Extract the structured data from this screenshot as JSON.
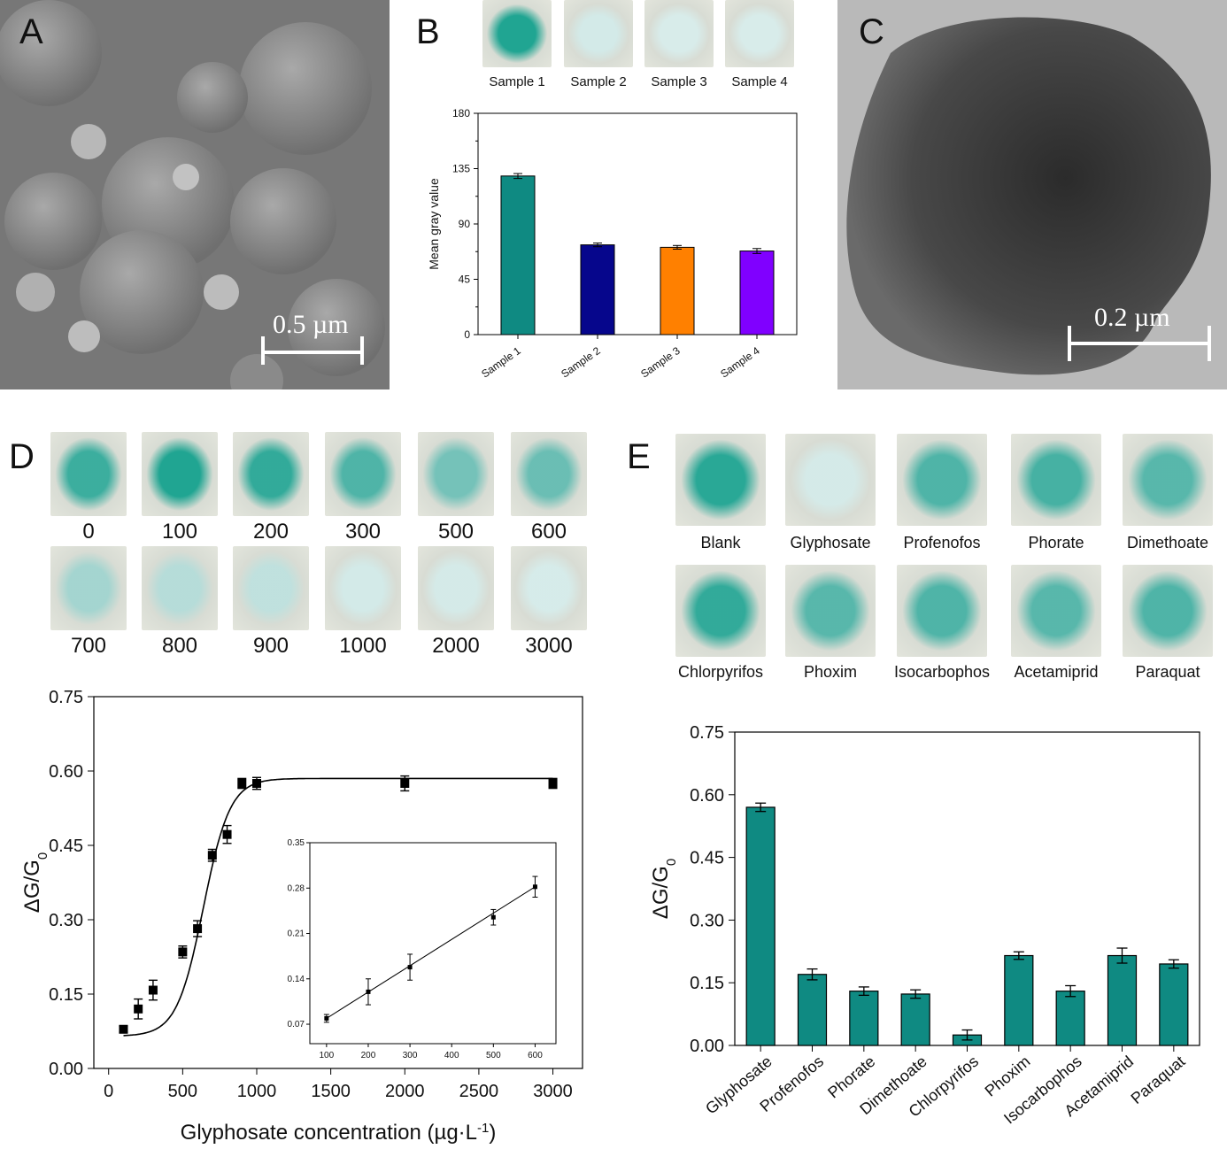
{
  "panels": {
    "A": {
      "letter": "A",
      "scale": "0.5 µm"
    },
    "B": {
      "letter": "B",
      "samples": [
        "Sample 1",
        "Sample 2",
        "Sample 3",
        "Sample 4"
      ]
    },
    "C": {
      "letter": "C",
      "scale": "0.2 µm"
    },
    "D": {
      "letter": "D",
      "conc_labels_row1": [
        "0",
        "100",
        "200",
        "300",
        "500",
        "600"
      ],
      "conc_labels_row2": [
        "700",
        "800",
        "900",
        "1000",
        "2000",
        "3000"
      ]
    },
    "E": {
      "letter": "E",
      "row1": [
        "Blank",
        "Glyphosate",
        "Profenofos",
        "Phorate",
        "Dimethoate"
      ],
      "row2": [
        "Chlorpyrifos",
        "Phoxim",
        "Isocarbophos",
        "Acetamiprid",
        "Paraquat"
      ]
    }
  },
  "colors": {
    "teal": "#0f8a82",
    "navy": "#06068c",
    "orange": "#ff8000",
    "purple": "#8000ff"
  },
  "chart_data": [
    {
      "id": "B",
      "type": "bar",
      "categories": [
        "Sample 1",
        "Sample 2",
        "Sample 3",
        "Sample 4"
      ],
      "values": [
        129,
        73,
        71,
        68
      ],
      "errors": [
        2,
        1.5,
        1.5,
        2
      ],
      "colors": [
        "#0f8a82",
        "#06068c",
        "#ff8000",
        "#8000ff"
      ],
      "ylabel": "Mean gray value",
      "ylim": [
        0,
        180
      ],
      "yticks": [
        "0",
        "45",
        "90",
        "135",
        "180"
      ]
    },
    {
      "id": "D",
      "type": "scatter",
      "xlabel": "Glyphosate concentration (µg·L",
      "xlabel_sup": "-1",
      "xlabel_close": ")",
      "ylabel": "ΔG/G",
      "ylabel_sub": "0",
      "xlim": [
        -100,
        3200
      ],
      "ylim": [
        0,
        0.75
      ],
      "xticks": [
        "0",
        "500",
        "1000",
        "1500",
        "2000",
        "2500",
        "3000"
      ],
      "yticks": [
        "0.00",
        "0.15",
        "0.30",
        "0.45",
        "0.60",
        "0.75"
      ],
      "points": [
        {
          "x": 100,
          "y": 0.079,
          "err": 0.006
        },
        {
          "x": 200,
          "y": 0.12,
          "err": 0.02
        },
        {
          "x": 300,
          "y": 0.158,
          "err": 0.02
        },
        {
          "x": 500,
          "y": 0.235,
          "err": 0.012
        },
        {
          "x": 600,
          "y": 0.282,
          "err": 0.016
        },
        {
          "x": 700,
          "y": 0.43,
          "err": 0.012
        },
        {
          "x": 800,
          "y": 0.472,
          "err": 0.018
        },
        {
          "x": 900,
          "y": 0.575,
          "err": 0.01
        },
        {
          "x": 1000,
          "y": 0.575,
          "err": 0.012
        },
        {
          "x": 2000,
          "y": 0.575,
          "err": 0.015
        },
        {
          "x": 3000,
          "y": 0.575,
          "err": 0.01
        }
      ],
      "fit": {
        "type": "sigmoid",
        "base": 0.065,
        "top": 0.585,
        "x0": 640,
        "width": 90
      }
    },
    {
      "id": "D-inset",
      "type": "scatter",
      "xlim": [
        60,
        650
      ],
      "ylim": [
        0.04,
        0.35
      ],
      "xticks": [
        "100",
        "200",
        "300",
        "400",
        "500",
        "600"
      ],
      "yticks": [
        "0.07",
        "0.14",
        "0.21",
        "0.28",
        "0.35"
      ],
      "points": [
        {
          "x": 100,
          "y": 0.079,
          "err": 0.006
        },
        {
          "x": 200,
          "y": 0.12,
          "err": 0.02
        },
        {
          "x": 300,
          "y": 0.158,
          "err": 0.02
        },
        {
          "x": 500,
          "y": 0.235,
          "err": 0.012
        },
        {
          "x": 600,
          "y": 0.282,
          "err": 0.016
        }
      ],
      "fit": {
        "type": "linear",
        "x": [
          100,
          600
        ],
        "y": [
          0.079,
          0.282
        ]
      }
    },
    {
      "id": "E",
      "type": "bar",
      "categories": [
        "Glyphosate",
        "Profenofos",
        "Phorate",
        "Dimethoate",
        "Chlorpyrifos",
        "Phoxim",
        "Isocarbophos",
        "Acetamiprid",
        "Paraquat"
      ],
      "values": [
        0.57,
        0.17,
        0.13,
        0.123,
        0.025,
        0.215,
        0.13,
        0.215,
        0.195
      ],
      "errors": [
        0.01,
        0.013,
        0.01,
        0.01,
        0.012,
        0.009,
        0.013,
        0.018,
        0.01
      ],
      "ylabel": "ΔG/G",
      "ylabel_sub": "0",
      "ylim": [
        0,
        0.75
      ],
      "yticks": [
        "0.00",
        "0.15",
        "0.30",
        "0.45",
        "0.60",
        "0.75"
      ]
    }
  ]
}
